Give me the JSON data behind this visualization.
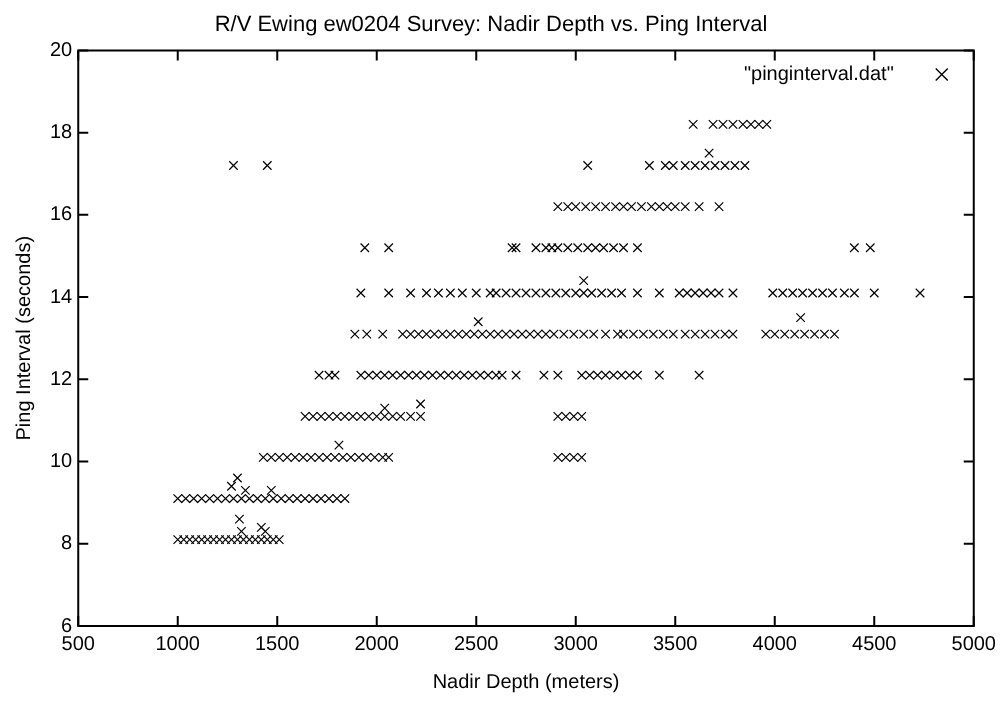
{
  "chart_data": {
    "type": "scatter",
    "title": "R/V Ewing ew0204 Survey: Nadir Depth vs. Ping Interval",
    "xlabel": "Nadir Depth (meters)",
    "ylabel": "Ping Interval (seconds)",
    "xlim": [
      500,
      5000
    ],
    "xticks": [
      500,
      1000,
      1500,
      2000,
      2500,
      3000,
      3500,
      4000,
      4500,
      5000
    ],
    "ylim": [
      6,
      20
    ],
    "yticks": [
      6,
      8,
      10,
      12,
      14,
      16,
      18,
      20
    ],
    "grid": false,
    "legend": "top right",
    "marker": "cross",
    "series": [
      {
        "name": "\"pinginterval.dat\"",
        "color": "#000000",
        "x": [
          1000,
          1030,
          1060,
          1090,
          1120,
          1150,
          1180,
          1210,
          1240,
          1270,
          1300,
          1330,
          1360,
          1390,
          1420,
          1450,
          1480,
          1510,
          1310,
          1320,
          1420,
          1440,
          1000,
          1040,
          1080,
          1120,
          1160,
          1200,
          1240,
          1280,
          1320,
          1360,
          1400,
          1440,
          1480,
          1520,
          1560,
          1600,
          1640,
          1680,
          1720,
          1760,
          1800,
          1840,
          1270,
          1300,
          1340,
          1470,
          1430,
          1470,
          1510,
          1550,
          1590,
          1630,
          1670,
          1710,
          1750,
          1790,
          1830,
          1870,
          1910,
          1950,
          1990,
          2030,
          2060,
          1810,
          1640,
          1680,
          1720,
          1760,
          1800,
          1840,
          1880,
          1920,
          1960,
          2000,
          2040,
          2080,
          2120,
          2170,
          2220,
          2040,
          2220,
          2910,
          2950,
          2990,
          3030,
          2910,
          2950,
          2990,
          3030,
          1710,
          1760,
          1790,
          1920,
          1960,
          2000,
          2040,
          2080,
          2120,
          2160,
          2200,
          2240,
          2280,
          2320,
          2360,
          2400,
          2440,
          2480,
          2520,
          2560,
          2600,
          2630,
          2700,
          2840,
          2910,
          3030,
          3070,
          3110,
          3150,
          3190,
          3230,
          3270,
          3310,
          3420,
          3620,
          1890,
          1950,
          2030,
          2130,
          2170,
          2210,
          2250,
          2290,
          2330,
          2370,
          2410,
          2450,
          2490,
          2530,
          2570,
          2610,
          2650,
          2690,
          2730,
          2770,
          2810,
          2850,
          2890,
          2940,
          2990,
          3040,
          3090,
          3150,
          3210,
          3240,
          3290,
          3340,
          3390,
          3440,
          3490,
          3550,
          3600,
          3650,
          3700,
          3750,
          3790,
          3955,
          4000,
          4050,
          4100,
          4150,
          4200,
          4250,
          4300,
          4130,
          2510,
          1920,
          2060,
          2170,
          2250,
          2310,
          2370,
          2430,
          2500,
          2570,
          2600,
          2650,
          2700,
          2750,
          2800,
          2850,
          2900,
          2950,
          3000,
          3040,
          3080,
          3130,
          3180,
          3230,
          3310,
          3420,
          3520,
          3560,
          3600,
          3640,
          3680,
          3720,
          3790,
          3990,
          4040,
          4090,
          4140,
          4190,
          4240,
          4290,
          4350,
          4400,
          4500,
          4730,
          3040,
          1940,
          2060,
          2680,
          2700,
          2800,
          2850,
          2880,
          2910,
          2960,
          3010,
          3060,
          3100,
          3140,
          3190,
          3240,
          3310,
          4400,
          4480,
          2910,
          2960,
          3000,
          3050,
          3100,
          3150,
          3200,
          3240,
          3280,
          3330,
          3380,
          3420,
          3460,
          3500,
          3550,
          3620,
          3720,
          1280,
          1450,
          3060,
          3370,
          3450,
          3490,
          3550,
          3600,
          3650,
          3700,
          3750,
          3800,
          3850,
          3670,
          3590,
          3690,
          3740,
          3790,
          3840,
          3880,
          3920,
          3960
        ],
        "values": [
          8.1,
          8.1,
          8.1,
          8.1,
          8.1,
          8.1,
          8.1,
          8.1,
          8.1,
          8.1,
          8.1,
          8.1,
          8.1,
          8.1,
          8.1,
          8.1,
          8.1,
          8.1,
          8.6,
          8.3,
          8.4,
          8.3,
          9.1,
          9.1,
          9.1,
          9.1,
          9.1,
          9.1,
          9.1,
          9.1,
          9.1,
          9.1,
          9.1,
          9.1,
          9.1,
          9.1,
          9.1,
          9.1,
          9.1,
          9.1,
          9.1,
          9.1,
          9.1,
          9.1,
          9.4,
          9.6,
          9.3,
          9.3,
          10.1,
          10.1,
          10.1,
          10.1,
          10.1,
          10.1,
          10.1,
          10.1,
          10.1,
          10.1,
          10.1,
          10.1,
          10.1,
          10.1,
          10.1,
          10.1,
          10.1,
          10.4,
          11.1,
          11.1,
          11.1,
          11.1,
          11.1,
          11.1,
          11.1,
          11.1,
          11.1,
          11.1,
          11.1,
          11.1,
          11.1,
          11.1,
          11.1,
          11.3,
          11.4,
          11.1,
          11.1,
          11.1,
          11.1,
          10.1,
          10.1,
          10.1,
          10.1,
          12.1,
          12.1,
          12.1,
          12.1,
          12.1,
          12.1,
          12.1,
          12.1,
          12.1,
          12.1,
          12.1,
          12.1,
          12.1,
          12.1,
          12.1,
          12.1,
          12.1,
          12.1,
          12.1,
          12.1,
          12.1,
          12.1,
          12.1,
          12.1,
          12.1,
          12.1,
          12.1,
          12.1,
          12.1,
          12.1,
          12.1,
          12.1,
          12.1,
          12.1,
          12.1,
          13.1,
          13.1,
          13.1,
          13.1,
          13.1,
          13.1,
          13.1,
          13.1,
          13.1,
          13.1,
          13.1,
          13.1,
          13.1,
          13.1,
          13.1,
          13.1,
          13.1,
          13.1,
          13.1,
          13.1,
          13.1,
          13.1,
          13.1,
          13.1,
          13.1,
          13.1,
          13.1,
          13.1,
          13.1,
          13.1,
          13.1,
          13.1,
          13.1,
          13.1,
          13.1,
          13.1,
          13.1,
          13.1,
          13.1,
          13.1,
          13.1,
          13.1,
          13.1,
          13.1,
          13.1,
          13.1,
          13.1,
          13.1,
          13.1,
          13.5,
          13.4,
          14.1,
          14.1,
          14.1,
          14.1,
          14.1,
          14.1,
          14.1,
          14.1,
          14.1,
          14.1,
          14.1,
          14.1,
          14.1,
          14.1,
          14.1,
          14.1,
          14.1,
          14.1,
          14.1,
          14.1,
          14.1,
          14.1,
          14.1,
          14.1,
          14.1,
          14.1,
          14.1,
          14.1,
          14.1,
          14.1,
          14.1,
          14.1,
          14.1,
          14.1,
          14.1,
          14.1,
          14.1,
          14.1,
          14.1,
          14.1,
          14.1,
          14.1,
          14.1,
          14.4,
          15.2,
          15.2,
          15.2,
          15.2,
          15.2,
          15.2,
          15.2,
          15.2,
          15.2,
          15.2,
          15.2,
          15.2,
          15.2,
          15.2,
          15.2,
          15.2,
          15.2,
          15.2,
          16.2,
          16.2,
          16.2,
          16.2,
          16.2,
          16.2,
          16.2,
          16.2,
          16.2,
          16.2,
          16.2,
          16.2,
          16.2,
          16.2,
          16.2,
          16.2,
          16.2,
          17.2,
          17.2,
          17.2,
          17.2,
          17.2,
          17.2,
          17.2,
          17.2,
          17.2,
          17.2,
          17.2,
          17.2,
          17.2,
          17.5,
          18.2,
          18.2,
          18.2,
          18.2,
          18.2,
          18.2,
          18.2,
          18.2
        ]
      }
    ]
  }
}
